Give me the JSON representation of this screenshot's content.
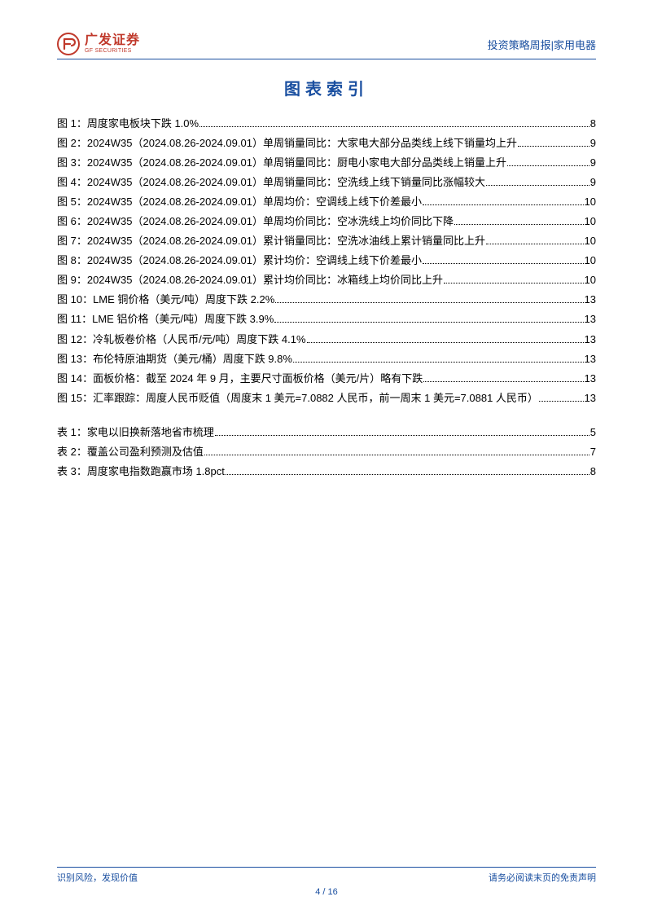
{
  "header": {
    "logo_cn": "广发证券",
    "logo_en": "GF SECURITIES",
    "right": "投资策略周报|家用电器"
  },
  "title": "图表索引",
  "figures": [
    {
      "label": "图 1：",
      "desc": "周度家电板块下跌 1.0%",
      "page": "8"
    },
    {
      "label": "图 2：",
      "desc": "2024W35（2024.08.26-2024.09.01）单周销量同比：大家电大部分品类线上线下销量均上升",
      "page": "9"
    },
    {
      "label": "图 3：",
      "desc": "2024W35（2024.08.26-2024.09.01）单周销量同比：厨电小家电大部分品类线上销量上升",
      "page": "9"
    },
    {
      "label": "图 4：",
      "desc": "2024W35（2024.08.26-2024.09.01）单周销量同比：空洗线上线下销量同比涨幅较大",
      "page": "9"
    },
    {
      "label": "图 5：",
      "desc": "2024W35（2024.08.26-2024.09.01）单周均价：空调线上线下价差最小",
      "page": "10"
    },
    {
      "label": "图 6：",
      "desc": "2024W35（2024.08.26-2024.09.01）单周均价同比：空冰洗线上均价同比下降",
      "page": "10"
    },
    {
      "label": "图 7：",
      "desc": "2024W35（2024.08.26-2024.09.01）累计销量同比：空洗冰油线上累计销量同比上升",
      "page": "10"
    },
    {
      "label": "图 8：",
      "desc": "2024W35（2024.08.26-2024.09.01）累计均价：空调线上线下价差最小",
      "page": "10"
    },
    {
      "label": "图 9：",
      "desc": "2024W35（2024.08.26-2024.09.01）累计均价同比：冰箱线上均价同比上升",
      "page": "10"
    },
    {
      "label": "图 10：",
      "desc": "LME 铜价格（美元/吨）周度下跌 2.2%",
      "page": "13"
    },
    {
      "label": "图 11：",
      "desc": "LME 铝价格（美元/吨）周度下跌 3.9%",
      "page": "13"
    },
    {
      "label": "图 12：",
      "desc": "冷轧板卷价格（人民币/元/吨）周度下跌 4.1%",
      "page": "13"
    },
    {
      "label": "图 13：",
      "desc": "布伦特原油期货（美元/桶）周度下跌 9.8%",
      "page": "13"
    },
    {
      "label": "图 14：",
      "desc": "面板价格：截至 2024 年 9 月，主要尺寸面板价格（美元/片）略有下跌",
      "page": "13"
    },
    {
      "label": "图 15：",
      "desc": "汇率跟踪：周度人民币贬值（周度末 1 美元=7.0882 人民币，前一周末 1 美元=7.0881 人民币）",
      "page": "13"
    }
  ],
  "tables": [
    {
      "label": "表 1：",
      "desc": "家电以旧换新落地省市梳理",
      "page": "5"
    },
    {
      "label": "表 2：",
      "desc": "覆盖公司盈利预测及估值",
      "page": "7"
    },
    {
      "label": "表 3：",
      "desc": "周度家电指数跑赢市场 1.8pct",
      "page": "8"
    }
  ],
  "footer": {
    "left": "识别风险，发现价值",
    "right": "请务必阅读末页的免责声明",
    "page_current": "4",
    "page_sep": " / ",
    "page_total": "16"
  },
  "colors": {
    "brand_blue": "#1a4fa0",
    "brand_red": "#c0392b"
  }
}
